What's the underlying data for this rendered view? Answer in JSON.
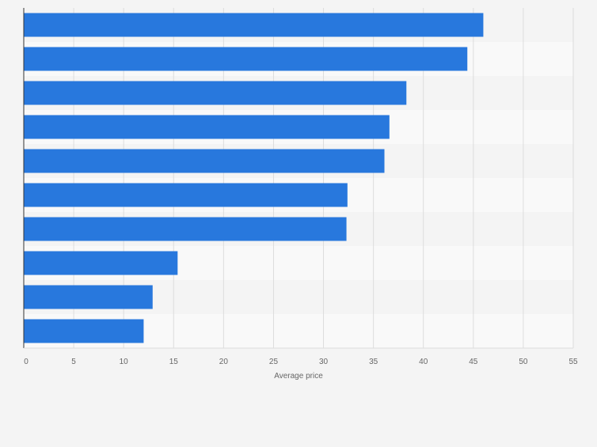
{
  "chart_data": {
    "type": "bar",
    "orientation": "horizontal",
    "title": "",
    "xlabel": "Average price",
    "ylabel": "",
    "xlim": [
      0,
      55
    ],
    "x_ticks": [
      0,
      5,
      10,
      15,
      20,
      25,
      30,
      35,
      40,
      45,
      50,
      55
    ],
    "grid": true,
    "category_labels_visible": false,
    "values": [
      46.0,
      44.4,
      38.3,
      36.6,
      36.1,
      32.4,
      32.3,
      15.4,
      12.9,
      12.0
    ]
  },
  "colors": {
    "bar": "#2878dd",
    "page_background": "#f4f4f4",
    "band_light": "#f9f9f9",
    "band_dark": "#f4f4f4",
    "gridline": "#dddddd",
    "axis": "#333333",
    "tick_text": "#666666"
  }
}
